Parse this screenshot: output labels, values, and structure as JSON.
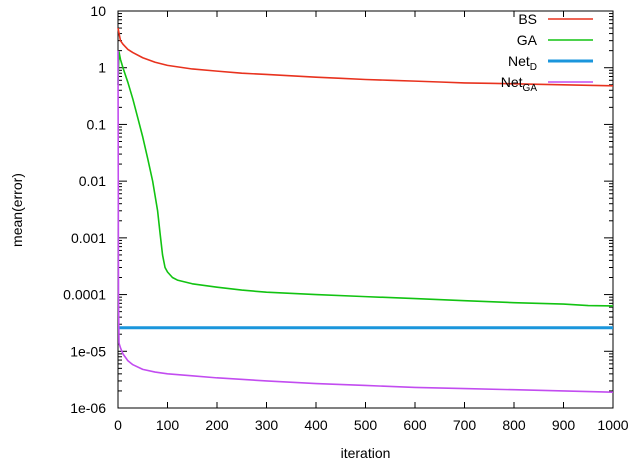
{
  "chart_data": {
    "type": "line",
    "xlabel": "iteration",
    "ylabel": "mean(error)",
    "xlim": [
      0,
      1000
    ],
    "ylim": [
      1e-06,
      10
    ],
    "yscale": "log",
    "grid": false,
    "legend_placement": "top-right",
    "x_ticks": [
      "0",
      "100",
      "200",
      "300",
      "400",
      "500",
      "600",
      "700",
      "800",
      "900",
      "1000"
    ],
    "y_ticks": [
      "10",
      "1",
      "0.1",
      "0.01",
      "0.001",
      "0.0001",
      "1e-05",
      "1e-06"
    ],
    "series": [
      {
        "name": "BS",
        "legend_main": "BS",
        "legend_sub": "",
        "color": "#e8321e",
        "stroke_width": 1.6,
        "x": [
          0,
          5,
          10,
          20,
          30,
          50,
          75,
          100,
          150,
          200,
          250,
          300,
          350,
          400,
          450,
          500,
          550,
          600,
          650,
          700,
          750,
          800,
          850,
          900,
          950,
          1000
        ],
        "y": [
          5.0,
          3.0,
          2.6,
          2.1,
          1.85,
          1.5,
          1.25,
          1.1,
          0.95,
          0.87,
          0.8,
          0.76,
          0.72,
          0.68,
          0.65,
          0.62,
          0.6,
          0.58,
          0.56,
          0.54,
          0.53,
          0.52,
          0.51,
          0.5,
          0.49,
          0.48
        ]
      },
      {
        "name": "GA",
        "legend_main": "GA",
        "legend_sub": "",
        "color": "#12c312",
        "stroke_width": 1.6,
        "x": [
          0,
          2,
          5,
          10,
          20,
          30,
          40,
          50,
          60,
          70,
          80,
          85,
          90,
          95,
          100,
          110,
          120,
          150,
          200,
          250,
          300,
          400,
          500,
          600,
          700,
          800,
          900,
          950,
          1000
        ],
        "y": [
          0.5,
          1.9,
          1.4,
          1.0,
          0.55,
          0.28,
          0.13,
          0.06,
          0.025,
          0.01,
          0.003,
          0.0012,
          0.0005,
          0.0003,
          0.00025,
          0.0002,
          0.00018,
          0.000155,
          0.000135,
          0.00012,
          0.00011,
          0.0001,
          9.2e-05,
          8.5e-05,
          7.8e-05,
          7.2e-05,
          6.8e-05,
          6.4e-05,
          6.3e-05
        ]
      },
      {
        "name": "NetD",
        "legend_main": "Net",
        "legend_sub": "D",
        "color": "#1a96dc",
        "stroke_width": 3,
        "x": [
          0,
          1000
        ],
        "y": [
          2.6e-05,
          2.6e-05
        ]
      },
      {
        "name": "NetGA",
        "legend_main": "Net",
        "legend_sub": "GA",
        "color": "#c24cf0",
        "stroke_width": 1.6,
        "x": [
          0,
          1,
          2,
          5,
          10,
          20,
          30,
          50,
          75,
          100,
          150,
          200,
          300,
          400,
          500,
          600,
          700,
          800,
          900,
          1000
        ],
        "y": [
          2.0,
          0.0001,
          1.4e-05,
          1.15e-05,
          9e-06,
          6.8e-06,
          5.8e-06,
          4.8e-06,
          4.3e-06,
          4e-06,
          3.7e-06,
          3.4e-06,
          3e-06,
          2.7e-06,
          2.5e-06,
          2.3e-06,
          2.2e-06,
          2.1e-06,
          2e-06,
          1.9e-06
        ]
      }
    ]
  }
}
